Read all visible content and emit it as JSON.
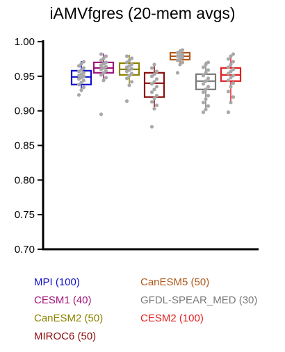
{
  "chart_data": {
    "type": "box",
    "title": "iAMVfgres (20-mem avgs)",
    "xlabel": "",
    "ylabel": "",
    "ylim": [
      0.7,
      1.0
    ],
    "yticks": [
      "1.00",
      "0.95",
      "0.90",
      "0.85",
      "0.80",
      "0.75",
      "0.70"
    ],
    "ytick_values": [
      1.0,
      0.95,
      0.9,
      0.85,
      0.8,
      0.75,
      0.7
    ],
    "grid": false,
    "legend_placement": "bottom",
    "series": [
      {
        "name": "MPI",
        "label": "MPI (100)",
        "color": "#1010c8",
        "whisker_low": 0.927,
        "q1": 0.938,
        "median": 0.949,
        "q3": 0.958,
        "whisker_high": 0.972,
        "points": [
          0.923,
          0.93,
          0.934,
          0.938,
          0.941,
          0.944,
          0.946,
          0.948,
          0.95,
          0.951,
          0.953,
          0.955,
          0.957,
          0.959,
          0.962,
          0.965,
          0.968,
          0.971
        ]
      },
      {
        "name": "CESM1",
        "label": "CESM1 (40)",
        "color": "#a0157a",
        "whisker_low": 0.944,
        "q1": 0.955,
        "median": 0.962,
        "q3": 0.97,
        "whisker_high": 0.983,
        "points": [
          0.895,
          0.944,
          0.948,
          0.952,
          0.955,
          0.958,
          0.96,
          0.962,
          0.964,
          0.966,
          0.968,
          0.97,
          0.973,
          0.976,
          0.979,
          0.982
        ]
      },
      {
        "name": "CanESM2",
        "label": "CanESM2 (50)",
        "color": "#8c8200",
        "whisker_low": 0.937,
        "q1": 0.952,
        "median": 0.96,
        "q3": 0.969,
        "whisker_high": 0.981,
        "points": [
          0.914,
          0.937,
          0.942,
          0.947,
          0.951,
          0.954,
          0.957,
          0.959,
          0.961,
          0.963,
          0.965,
          0.967,
          0.97,
          0.973,
          0.976,
          0.979
        ]
      },
      {
        "name": "MIROC6",
        "label": "MIROC6 (50)",
        "color": "#8b0d0d",
        "whisker_low": 0.903,
        "q1": 0.92,
        "median": 0.94,
        "q3": 0.955,
        "whisker_high": 0.969,
        "points": [
          0.877,
          0.903,
          0.908,
          0.913,
          0.918,
          0.922,
          0.927,
          0.931,
          0.935,
          0.939,
          0.942,
          0.946,
          0.95,
          0.953,
          0.957,
          0.962,
          0.967
        ]
      },
      {
        "name": "CanESM5",
        "label": "CanESM5 (50)",
        "color": "#b0581a",
        "whisker_low": 0.967,
        "q1": 0.974,
        "median": 0.979,
        "q3": 0.984,
        "whisker_high": 0.989,
        "points": [
          0.955,
          0.967,
          0.97,
          0.973,
          0.975,
          0.977,
          0.979,
          0.98,
          0.982,
          0.984,
          0.986,
          0.988
        ]
      },
      {
        "name": "GFDL-SPEAR_MED",
        "label": "GFDL-SPEAR_MED (30)",
        "color": "#7a7a7a",
        "whisker_low": 0.9,
        "q1": 0.931,
        "median": 0.943,
        "q3": 0.953,
        "whisker_high": 0.971,
        "points": [
          0.898,
          0.902,
          0.907,
          0.912,
          0.917,
          0.922,
          0.927,
          0.931,
          0.935,
          0.939,
          0.943,
          0.947,
          0.951,
          0.955,
          0.959,
          0.963,
          0.967,
          0.97
        ]
      },
      {
        "name": "CESM2",
        "label": "CESM2 (100)",
        "color": "#e02020",
        "whisker_low": 0.912,
        "q1": 0.943,
        "median": 0.952,
        "q3": 0.962,
        "whisker_high": 0.978,
        "points": [
          0.898,
          0.912,
          0.92,
          0.928,
          0.935,
          0.94,
          0.944,
          0.948,
          0.951,
          0.954,
          0.957,
          0.96,
          0.963,
          0.967,
          0.971,
          0.975,
          0.979,
          0.982
        ]
      }
    ],
    "point_color": "#a8a8a8"
  }
}
